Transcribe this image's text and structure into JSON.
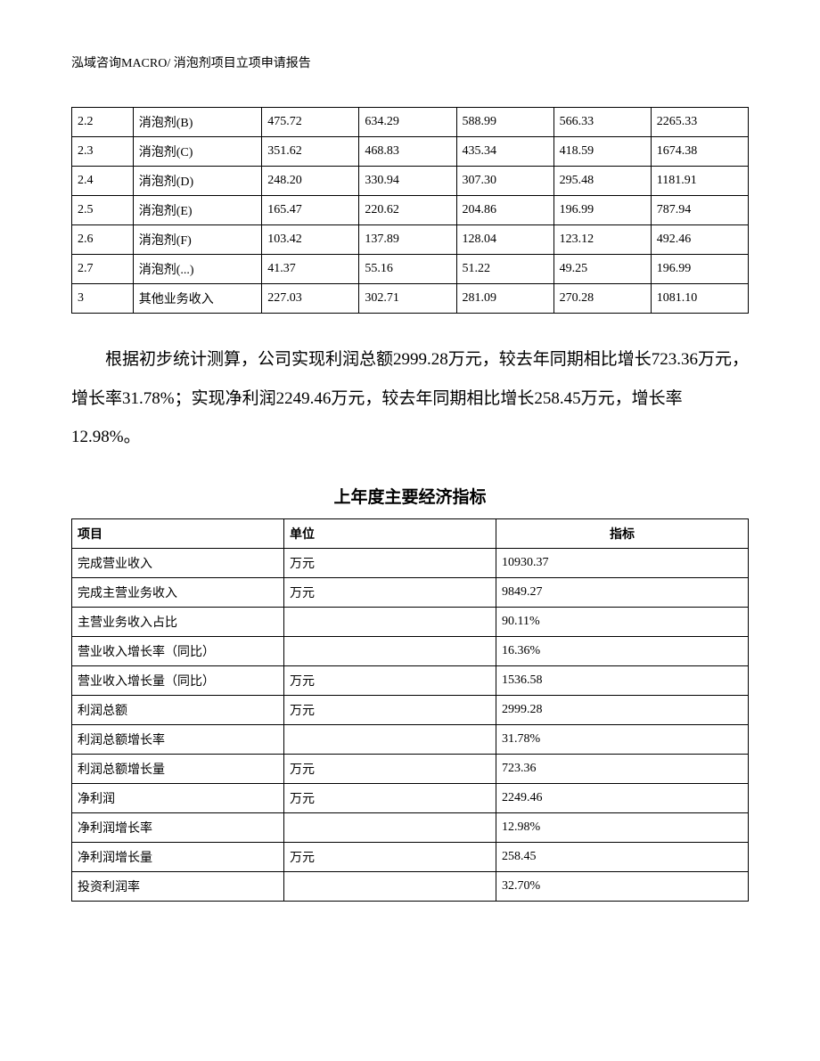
{
  "header": "泓域咨询MACRO/   消泡剂项目立项申请报告",
  "table1": {
    "rows": [
      [
        "2.2",
        "消泡剂(B)",
        "475.72",
        "634.29",
        "588.99",
        "566.33",
        "2265.33"
      ],
      [
        "2.3",
        "消泡剂(C)",
        "351.62",
        "468.83",
        "435.34",
        "418.59",
        "1674.38"
      ],
      [
        "2.4",
        "消泡剂(D)",
        "248.20",
        "330.94",
        "307.30",
        "295.48",
        "1181.91"
      ],
      [
        "2.5",
        "消泡剂(E)",
        "165.47",
        "220.62",
        "204.86",
        "196.99",
        "787.94"
      ],
      [
        "2.6",
        "消泡剂(F)",
        "103.42",
        "137.89",
        "128.04",
        "123.12",
        "492.46"
      ],
      [
        "2.7",
        "消泡剂(...)",
        "41.37",
        "55.16",
        "51.22",
        "49.25",
        "196.99"
      ],
      [
        "3",
        "其他业务收入",
        "227.03",
        "302.71",
        "281.09",
        "270.28",
        "1081.10"
      ]
    ]
  },
  "paragraph": "根据初步统计测算，公司实现利润总额2999.28万元，较去年同期相比增长723.36万元，增长率31.78%；实现净利润2249.46万元，较去年同期相比增长258.45万元，增长率12.98%。",
  "subtitle": "上年度主要经济指标",
  "table2": {
    "header": [
      "项目",
      "单位",
      "指标"
    ],
    "rows": [
      [
        "完成营业收入",
        "万元",
        "10930.37"
      ],
      [
        "完成主营业务收入",
        "万元",
        "9849.27"
      ],
      [
        "主营业务收入占比",
        "",
        "90.11%"
      ],
      [
        "营业收入增长率（同比）",
        "",
        "16.36%"
      ],
      [
        "营业收入增长量（同比）",
        "万元",
        "1536.58"
      ],
      [
        "利润总额",
        "万元",
        "2999.28"
      ],
      [
        "利润总额增长率",
        "",
        "31.78%"
      ],
      [
        "利润总额增长量",
        "万元",
        "723.36"
      ],
      [
        "净利润",
        "万元",
        "2249.46"
      ],
      [
        "净利润增长率",
        "",
        "12.98%"
      ],
      [
        "净利润增长量",
        "万元",
        "258.45"
      ],
      [
        "投资利润率",
        "",
        "32.70%"
      ]
    ]
  }
}
